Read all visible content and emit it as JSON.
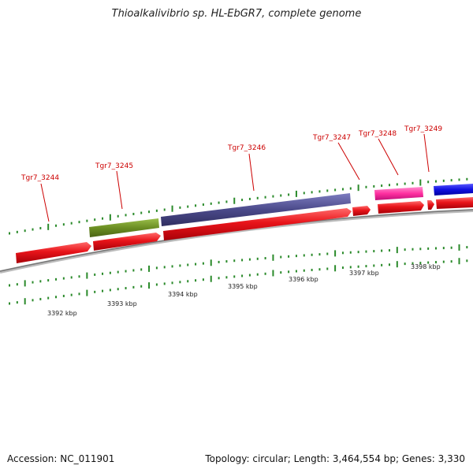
{
  "title": "Thioalkalivibrio sp. HL-EbGR7, complete genome",
  "footer": {
    "accession": "Accession: NC_011901",
    "summary": "Topology: circular; Length: 3,464,554 bp; Genes: 3,330"
  },
  "colors": {
    "cds": "#e8141a",
    "backbone": "#888888",
    "tick": "#2a8a2a",
    "label": "#cc0000"
  },
  "genes": [
    {
      "label": "Tgr7_3244",
      "color": "#e8141a"
    },
    {
      "label": "Tgr7_3245",
      "color": "#6b8e23"
    },
    {
      "label": "Tgr7_3246",
      "color": "#4b4a8a"
    },
    {
      "label": "Tgr7_3247",
      "color": "#e8141a"
    },
    {
      "label": "Tgr7_3248",
      "color": "#ff2fa0"
    },
    {
      "label": "Tgr7_3249",
      "color": "#1010e0"
    }
  ],
  "scale_labels": [
    "3392 kbp",
    "3393 kbp",
    "3394 kbp",
    "3395 kbp",
    "3396 kbp",
    "3397 kbp",
    "3398 kbp"
  ]
}
